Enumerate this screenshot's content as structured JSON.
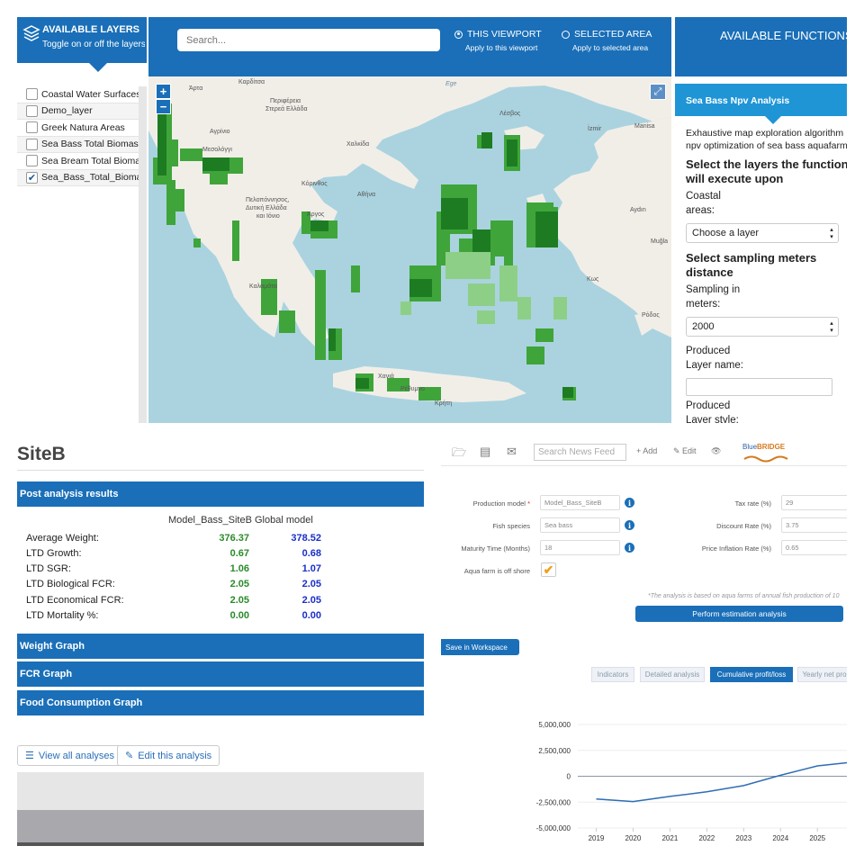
{
  "layers_panel": {
    "title": "AVAILABLE LAYERS",
    "subtitle": "Toggle on or off the layers",
    "items": [
      {
        "label": "Coastal Water Surfaces",
        "checked": false
      },
      {
        "label": "Demo_layer",
        "checked": false
      },
      {
        "label": "Greek Natura Areas",
        "checked": false
      },
      {
        "label": "Sea Bass Total Biomass",
        "checked": false
      },
      {
        "label": "Sea Bream Total Biomass",
        "checked": false
      },
      {
        "label": "Sea_Bass_Total_Biomass",
        "checked": true
      }
    ]
  },
  "map_header": {
    "search_placeholder": "Search...",
    "viewport_label": "THIS VIEWPORT",
    "viewport_hint": "Apply to this viewport",
    "area_label": "SELECTED AREA",
    "area_hint": "Apply to selected area",
    "selected": "viewport"
  },
  "map": {
    "zoom_in": "+",
    "zoom_out": "−",
    "expand": "⤢",
    "labels": {
      "arta": "Άρτα",
      "karditsa": "Καρδίτσα",
      "agrinio": "Αγρίνιο",
      "mesolongi": "Μεσολόγγι",
      "sterea": "Περιφέρεια",
      "sterea2": "Στερεά Ελλάδα",
      "lesvos": "Λέσβος",
      "chalkida": "Χαλκίδα",
      "korinthos": "Κόρινθος",
      "athens": "Αθήνα",
      "peloponnese1": "Πελοπόννησος,",
      "peloponnese2": "Δυτική Ελλάδα",
      "peloponnese3": "και Ιόνιο",
      "argos": "Άργος",
      "kalamata": "Καλαμάτα",
      "manisa": "Manisa",
      "izmir": "İzmir",
      "aydin": "Aydın",
      "mugla": "Muğla",
      "kos": "Κως",
      "rodos": "Ρόδος",
      "chania": "Χανιά",
      "rethymno": "Ρέθυμνο",
      "kriti": "Κρήτη",
      "ege": "Ege"
    }
  },
  "functions_panel": {
    "header": "AVAILABLE FUNCTIONS",
    "title": "Sea Bass Npv Analysis",
    "desc_line1": "Exhaustive map exploration algorithm",
    "desc_line2": "npv optimization of sea bass aquafarm",
    "select_layers_line1": "Select the layers the function",
    "select_layers_line2": "will execute upon",
    "coastal_label_1": "Coastal",
    "coastal_label_2": "areas:",
    "coastal_value": "Choose a layer",
    "sampling_heading_1": "Select sampling meters",
    "sampling_heading_2": "distance",
    "sampling_label_1": "Sampling in",
    "sampling_label_2": "meters:",
    "sampling_value": "2000",
    "produced_name_1": "Produced",
    "produced_name_2": "Layer name:",
    "produced_style_1": "Produced",
    "produced_style_2": "Layer style:"
  },
  "site_panel": {
    "title": "SiteB",
    "post_analysis": "Post analysis results",
    "results_header": "Model_Bass_SiteB Global model",
    "rows": [
      {
        "label": "Average Weight:",
        "site": "376.37",
        "global": "378.52"
      },
      {
        "label": "LTD Growth:",
        "site": "0.67",
        "global": "0.68"
      },
      {
        "label": "LTD SGR:",
        "site": "1.06",
        "global": "1.07"
      },
      {
        "label": "LTD Biological FCR:",
        "site": "2.05",
        "global": "2.05"
      },
      {
        "label": "LTD Economical FCR:",
        "site": "2.05",
        "global": "2.05"
      },
      {
        "label": "LTD Mortality %:",
        "site": "0.00",
        "global": "0.00"
      }
    ],
    "weight_graph": "Weight Graph",
    "fcr_graph": "FCR Graph",
    "food_graph": "Food Consumption Graph",
    "view_all": "View all analyses",
    "edit": "Edit this analysis"
  },
  "estimation_panel": {
    "search_placeholder": "Search News Feed",
    "add": "+ Add",
    "edit": "Edit",
    "logo_text_1": "Blue",
    "logo_text_2": "BRIDGE",
    "production_model_label": "Production model",
    "production_model_value": "Model_Bass_SiteB",
    "fish_species_label": "Fish species",
    "fish_species_value": "Sea bass",
    "maturity_label": "Maturity Time (Months)",
    "maturity_value": "18",
    "offshore_label": "Aqua farm is off shore",
    "tax_label": "Tax rate (%)",
    "tax_value": "29",
    "discount_label": "Discount Rate (%)",
    "discount_value": "3.75",
    "inflation_label": "Price Inflation Rate (%)",
    "inflation_value": "0.65",
    "note": "*The analysis is based on aqua farms of annual fish production of 10",
    "perform_button": "Perform estimation analysis",
    "save_button": "Save in Workspace",
    "tabs": [
      {
        "label": "Indicators",
        "active": false
      },
      {
        "label": "Detailed analysis",
        "active": false
      },
      {
        "label": "Cumulative profit/loss",
        "active": true
      },
      {
        "label": "Yearly net pro",
        "active": false
      }
    ]
  },
  "chart_data": {
    "type": "line",
    "categories": [
      "2019",
      "2020",
      "2021",
      "2022",
      "2023",
      "2024",
      "2025"
    ],
    "x": [
      2019,
      2020,
      2021,
      2022,
      2023,
      2024,
      2025,
      2025.8
    ],
    "series": [
      {
        "values": [
          -2200000,
          -2450000,
          -1950000,
          -1500000,
          -900000,
          100000,
          1000000,
          1300000
        ],
        "color": "#2f6db5"
      }
    ],
    "yticks": [
      "5,000,000",
      "2,500,000",
      "0",
      "-2,500,000",
      "-5,000,000"
    ],
    "ylim": [
      -5000000,
      5000000
    ],
    "grid": true
  }
}
